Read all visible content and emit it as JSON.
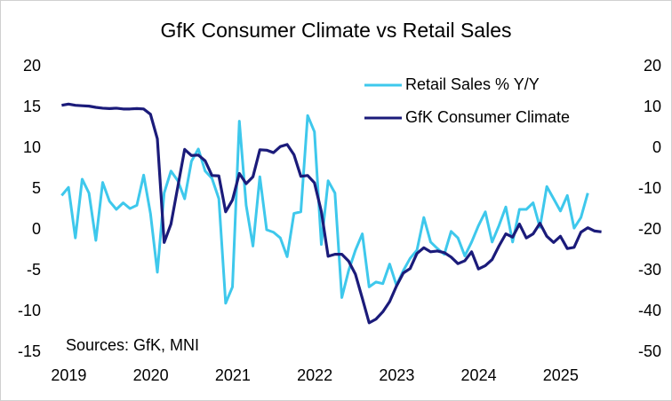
{
  "chart_data": {
    "type": "line",
    "title": "GfK Consumer Climate vs Retail Sales",
    "annotation": "Sources: GfK, MNI",
    "xlim": [
      2018.92,
      2025.75
    ],
    "xticks": [
      2019,
      2020,
      2021,
      2022,
      2023,
      2024,
      2025
    ],
    "ylim": [
      -15,
      20
    ],
    "yticks": [
      -15,
      -10,
      -5,
      0,
      5,
      10,
      15,
      20
    ],
    "y2lim": [
      -50,
      20
    ],
    "y2ticks": [
      -50,
      -40,
      -30,
      -20,
      -10,
      0,
      10,
      20
    ],
    "grid": false,
    "legend": "upper right",
    "series": [
      {
        "name": "Retail Sales % Y/Y",
        "color": "#3ec8ec",
        "axis": "y",
        "x": [
          2019.0,
          2019.083,
          2019.167,
          2019.25,
          2019.333,
          2019.417,
          2019.5,
          2019.583,
          2019.667,
          2019.75,
          2019.833,
          2019.917,
          2020.0,
          2020.083,
          2020.167,
          2020.25,
          2020.333,
          2020.417,
          2020.5,
          2020.583,
          2020.667,
          2020.75,
          2020.833,
          2020.917,
          2021.0,
          2021.083,
          2021.167,
          2021.25,
          2021.333,
          2021.417,
          2021.5,
          2021.583,
          2021.667,
          2021.75,
          2021.833,
          2021.917,
          2022.0,
          2022.083,
          2022.167,
          2022.25,
          2022.333,
          2022.417,
          2022.5,
          2022.583,
          2022.667,
          2022.75,
          2022.833,
          2022.917,
          2023.0,
          2023.083,
          2023.167,
          2023.25,
          2023.333,
          2023.417,
          2023.5,
          2023.583,
          2023.667,
          2023.75,
          2023.833,
          2023.917,
          2024.0,
          2024.083,
          2024.167,
          2024.25,
          2024.333,
          2024.417,
          2024.5,
          2024.583,
          2024.667,
          2024.75,
          2024.833,
          2024.917,
          2025.0,
          2025.083,
          2025.167,
          2025.25,
          2025.333,
          2025.417
        ],
        "values": [
          4.2,
          5.2,
          -1.0,
          6.2,
          4.5,
          -1.3,
          5.8,
          3.5,
          2.5,
          3.3,
          2.6,
          3.0,
          6.7,
          2.0,
          -5.2,
          4.5,
          7.2,
          6.0,
          3.8,
          8.4,
          9.9,
          7.2,
          6.3,
          3.8,
          -9.0,
          -7.0,
          13.3,
          3.0,
          -2.0,
          6.5,
          0.0,
          -0.3,
          -1.0,
          -3.3,
          2.0,
          2.2,
          14.0,
          12.0,
          -1.8,
          6.0,
          4.5,
          -8.3,
          -5.0,
          -2.5,
          -0.5,
          -7.0,
          -6.4,
          -6.6,
          -4.2,
          -6.8,
          -5.0,
          -3.5,
          -2.5,
          1.5,
          -1.5,
          -2.3,
          -3.0,
          -0.2,
          -1.0,
          -3.2,
          -1.5,
          0.5,
          2.2,
          -1.5,
          0.5,
          2.8,
          -1.5,
          2.5,
          2.5,
          3.3,
          0.3,
          5.3,
          3.8,
          2.3,
          4.2,
          0.2,
          1.5,
          4.5
        ]
      },
      {
        "name": "GfK Consumer Climate",
        "color": "#1b1b7a",
        "axis": "y2",
        "x": [
          2019.0,
          2019.083,
          2019.167,
          2019.25,
          2019.333,
          2019.417,
          2019.5,
          2019.583,
          2019.667,
          2019.75,
          2019.833,
          2019.917,
          2020.0,
          2020.083,
          2020.167,
          2020.25,
          2020.333,
          2020.417,
          2020.5,
          2020.583,
          2020.667,
          2020.75,
          2020.833,
          2020.917,
          2021.0,
          2021.083,
          2021.167,
          2021.25,
          2021.333,
          2021.417,
          2021.5,
          2021.583,
          2021.667,
          2021.75,
          2021.833,
          2021.917,
          2022.0,
          2022.083,
          2022.167,
          2022.25,
          2022.333,
          2022.417,
          2022.5,
          2022.583,
          2022.667,
          2022.75,
          2022.833,
          2022.917,
          2023.0,
          2023.083,
          2023.167,
          2023.25,
          2023.333,
          2023.417,
          2023.5,
          2023.583,
          2023.667,
          2023.75,
          2023.833,
          2023.917,
          2024.0,
          2024.083,
          2024.167,
          2024.25,
          2024.333,
          2024.417,
          2024.5,
          2024.583,
          2024.667,
          2024.75,
          2024.833,
          2024.917,
          2025.0,
          2025.083,
          2025.167,
          2025.25,
          2025.333,
          2025.417,
          2025.5,
          2025.583
        ],
        "values": [
          10.5,
          10.8,
          10.5,
          10.4,
          10.3,
          10.0,
          9.8,
          9.7,
          9.8,
          9.6,
          9.6,
          9.7,
          9.6,
          8.3,
          2.3,
          -23.1,
          -18.6,
          -9.4,
          -0.3,
          -1.8,
          -1.7,
          -3.1,
          -6.7,
          -6.8,
          -15.6,
          -12.7,
          -6.2,
          -8.7,
          -7.0,
          -0.4,
          -0.5,
          -1.1,
          0.4,
          0.9,
          -1.6,
          -6.9,
          -6.7,
          -8.5,
          -15.5,
          -26.5,
          -26.0,
          -26.0,
          -27.7,
          -30.9,
          -36.8,
          -42.8,
          -41.9,
          -40.1,
          -37.6,
          -33.8,
          -30.6,
          -29.5,
          -25.8,
          -24.4,
          -25.4,
          -25.2,
          -25.6,
          -26.7,
          -28.3,
          -27.6,
          -25.4,
          -29.6,
          -28.8,
          -27.3,
          -24.0,
          -21.0,
          -21.8,
          -18.6,
          -22.0,
          -21.0,
          -18.4,
          -21.6,
          -23.1,
          -21.6,
          -24.6,
          -24.3,
          -20.6,
          -19.5,
          -20.3,
          -20.5
        ]
      }
    ]
  }
}
